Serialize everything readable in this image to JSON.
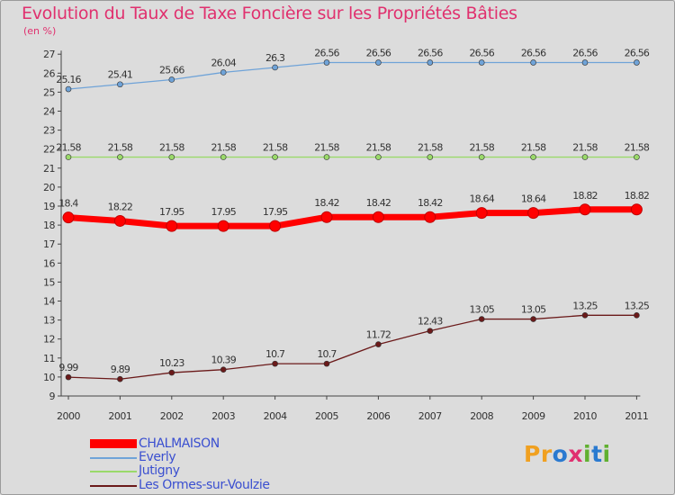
{
  "title": "Evolution du Taux de Taxe Foncière sur les Propriétés Bâties",
  "unit": "(en %)",
  "logo": {
    "text": "Proxiti",
    "letters": [
      "P",
      "r",
      "o",
      "x",
      "i",
      "t",
      "i"
    ],
    "colors": [
      "#f0a020",
      "#f0a020",
      "#2a7ad0",
      "#e03070",
      "#60b030",
      "#2a7ad0",
      "#60b030"
    ]
  },
  "chart_data": {
    "type": "line",
    "title": "Evolution du Taux de Taxe Foncière sur les Propriétés Bâties",
    "ylabel": "(en %)",
    "xlabel": "",
    "categories": [
      "2000",
      "2001",
      "2002",
      "2003",
      "2004",
      "2005",
      "2006",
      "2007",
      "2008",
      "2009",
      "2010",
      "2011"
    ],
    "ylim": [
      9,
      27
    ],
    "yticks": [
      "9",
      "10",
      "11",
      "12",
      "13",
      "14",
      "15",
      "16",
      "17",
      "18",
      "19",
      "20",
      "21",
      "22",
      "23",
      "24",
      "25",
      "26",
      "27"
    ],
    "grid": false,
    "legend_position": "bottom-left",
    "series": [
      {
        "name": "CHALMAISON",
        "color": "#ff0000",
        "bold": true,
        "values": [
          18.4,
          18.22,
          17.95,
          17.95,
          17.95,
          18.42,
          18.42,
          18.42,
          18.64,
          18.64,
          18.82,
          18.82
        ],
        "labels": [
          "18.4",
          "18.22",
          "17.95",
          "17.95",
          "17.95",
          "18.42",
          "18.42",
          "18.42",
          "18.64",
          "18.64",
          "18.82",
          "18.82"
        ]
      },
      {
        "name": "Everly",
        "color": "#6fa3d8",
        "bold": false,
        "values": [
          25.16,
          25.41,
          25.66,
          26.04,
          26.3,
          26.56,
          26.56,
          26.56,
          26.56,
          26.56,
          26.56,
          26.56
        ],
        "labels": [
          "25.16",
          "25.41",
          "25.66",
          "26.04",
          "26.3",
          "26.56",
          "26.56",
          "26.56",
          "26.56",
          "26.56",
          "26.56",
          "26.56"
        ]
      },
      {
        "name": "Jutigny",
        "color": "#9ad96a",
        "bold": false,
        "values": [
          21.58,
          21.58,
          21.58,
          21.58,
          21.58,
          21.58,
          21.58,
          21.58,
          21.58,
          21.58,
          21.58,
          21.58
        ],
        "labels": [
          "21.58",
          "21.58",
          "21.58",
          "21.58",
          "21.58",
          "21.58",
          "21.58",
          "21.58",
          "21.58",
          "21.58",
          "21.58",
          "21.58"
        ]
      },
      {
        "name": "Les Ormes-sur-Voulzie",
        "color": "#6b1a1a",
        "bold": false,
        "values": [
          9.99,
          9.89,
          10.23,
          10.39,
          10.7,
          10.7,
          11.72,
          12.43,
          13.05,
          13.05,
          13.25,
          13.25
        ],
        "labels": [
          "9.99",
          "9.89",
          "10.23",
          "10.39",
          "10.7",
          "10.7",
          "11.72",
          "12.43",
          "13.05",
          "13.05",
          "13.25",
          "13.25"
        ]
      }
    ]
  }
}
